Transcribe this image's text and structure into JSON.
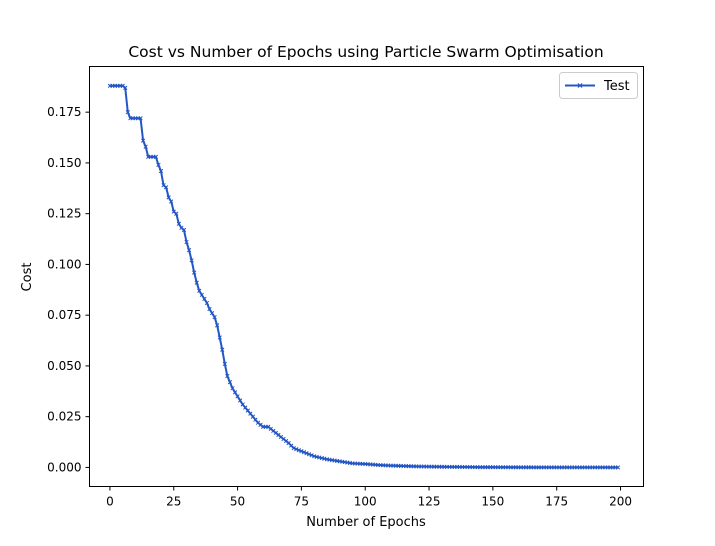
{
  "chart_data": {
    "type": "line",
    "title": "Cost vs Number of Epochs using Particle Swarm Optimisation",
    "xlabel": "Number of Epochs",
    "ylabel": "Cost",
    "xlim": [
      -8,
      209
    ],
    "ylim": [
      -0.0094,
      0.1975
    ],
    "xticks": [
      0,
      25,
      50,
      75,
      100,
      125,
      150,
      175,
      200
    ],
    "yticks": [
      0.0,
      0.025,
      0.05,
      0.075,
      0.1,
      0.125,
      0.15,
      0.175
    ],
    "xtick_labels": [
      "0",
      "25",
      "50",
      "75",
      "100",
      "125",
      "150",
      "175",
      "200"
    ],
    "ytick_labels": [
      "0.000",
      "0.025",
      "0.050",
      "0.075",
      "0.100",
      "0.125",
      "0.150",
      "0.175"
    ],
    "grid": false,
    "legend_position": "top-right",
    "series": [
      {
        "name": "Test",
        "color": "#2457c5",
        "marker": "x",
        "keypoints_x": [
          0,
          5,
          6,
          7,
          8,
          12,
          13,
          14,
          15,
          18,
          19,
          20,
          21,
          22,
          23,
          24,
          25,
          26,
          27,
          28,
          29,
          30,
          31,
          32,
          33,
          34,
          35,
          36,
          37,
          38,
          39,
          40,
          41,
          42,
          43,
          44,
          45,
          46,
          47,
          48,
          49,
          50,
          52,
          54,
          56,
          58,
          60,
          62,
          64,
          66,
          68,
          70,
          72,
          74,
          76,
          78,
          80,
          85,
          90,
          95,
          100,
          105,
          110,
          115,
          120,
          125,
          130,
          140,
          145,
          150,
          160,
          170,
          180,
          190,
          199
        ],
        "keypoints_y": [
          0.188,
          0.188,
          0.187,
          0.175,
          0.172,
          0.172,
          0.161,
          0.158,
          0.153,
          0.153,
          0.149,
          0.146,
          0.139,
          0.138,
          0.133,
          0.131,
          0.126,
          0.125,
          0.12,
          0.118,
          0.117,
          0.111,
          0.107,
          0.102,
          0.096,
          0.091,
          0.087,
          0.085,
          0.083,
          0.081,
          0.078,
          0.076,
          0.074,
          0.07,
          0.064,
          0.058,
          0.051,
          0.045,
          0.042,
          0.039,
          0.037,
          0.035,
          0.031,
          0.028,
          0.025,
          0.022,
          0.02,
          0.02,
          0.018,
          0.016,
          0.014,
          0.012,
          0.0095,
          0.0085,
          0.0075,
          0.0065,
          0.0055,
          0.004,
          0.003,
          0.002,
          0.0017,
          0.0012,
          0.0009,
          0.0007,
          0.0005,
          0.0004,
          0.0003,
          0.0002,
          0.0001,
          0.0001,
          5e-05,
          3e-05,
          2e-05,
          1e-05,
          0.0
        ]
      }
    ]
  }
}
